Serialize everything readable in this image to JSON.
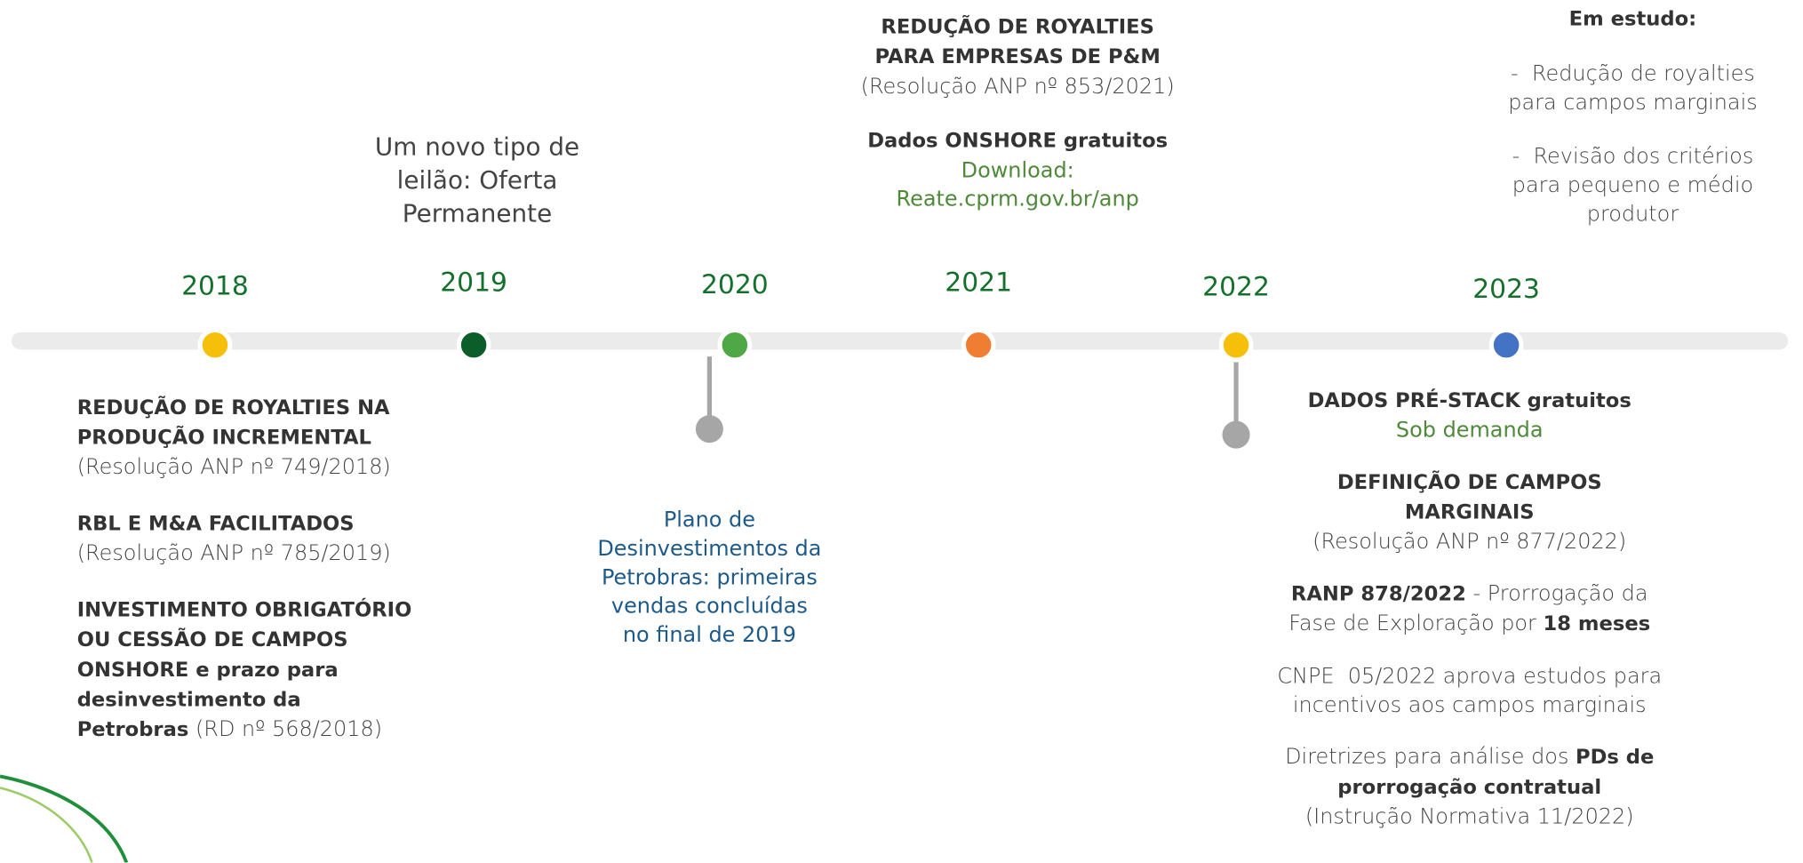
{
  "years": [
    {
      "label": "2018",
      "color": "#f5bf0a"
    },
    {
      "label": "2019",
      "color": "#0b5e2a"
    },
    {
      "label": "2020",
      "color": "#4ea845"
    },
    {
      "label": "2021",
      "color": "#ef7d32"
    },
    {
      "label": "2022",
      "color": "#f5bf0a"
    },
    {
      "label": "2023",
      "color": "#4472c4"
    }
  ],
  "blocks": [
    {
      "paragraphs": [
        [
          [
            {
              "text": "REDUÇÃO DE ROYALTIES NA",
              "style": "bold"
            }
          ],
          [
            {
              "text": "PRODUÇÃO INCREMENTAL",
              "style": "bold"
            }
          ],
          [
            {
              "text": "(Resolução ANP nº 749/2018)",
              "style": "regular"
            }
          ]
        ],
        [
          [
            {
              "text": "RBL E M&A FACILITADOS",
              "style": "bold"
            }
          ],
          [
            {
              "text": "(Resolução ANP nº 785/2019)",
              "style": "regular"
            }
          ]
        ],
        [
          [
            {
              "text": "INVESTIMENTO OBRIGATÓRIO",
              "style": "bold"
            }
          ],
          [
            {
              "text": "OU CESSÃO DE CAMPOS",
              "style": "bold"
            }
          ],
          [
            {
              "text": "ONSHORE e prazo para",
              "style": "bold"
            }
          ],
          [
            {
              "text": "desinvestimento da",
              "style": "bold"
            }
          ],
          [
            {
              "text": "Petrobras",
              "style": "bold"
            },
            {
              "text": " (RD nº 568/2018)",
              "style": "regular"
            }
          ]
        ]
      ]
    },
    {
      "paragraphs": [
        [
          [
            {
              "text": "Um novo tipo de",
              "style": "large"
            }
          ],
          [
            {
              "text": "leilão: Oferta",
              "style": "large"
            }
          ],
          [
            {
              "text": "Permanente",
              "style": "large"
            }
          ]
        ]
      ]
    },
    {
      "paragraphs": [
        [
          [
            {
              "text": "Plano de",
              "style": "blue"
            }
          ],
          [
            {
              "text": "Desinvestimentos da",
              "style": "blue"
            }
          ],
          [
            {
              "text": "Petrobras: primeiras",
              "style": "blue"
            }
          ],
          [
            {
              "text": "vendas concluídas",
              "style": "blue"
            }
          ],
          [
            {
              "text": "no final de 2019",
              "style": "blue"
            }
          ]
        ]
      ]
    },
    {
      "paragraphs": [
        [
          [
            {
              "text": "REDUÇÃO DE ROYALTIES",
              "style": "bold"
            }
          ],
          [
            {
              "text": "PARA EMPRESAS DE P&M",
              "style": "bold"
            }
          ],
          [
            {
              "text": "(Resolução ANP nº 853/2021)",
              "style": "regular"
            }
          ]
        ],
        [
          [
            {
              "text": "Dados ONSHORE gratuitos",
              "style": "bold"
            }
          ],
          [
            {
              "text": "Download:",
              "style": "green"
            }
          ],
          [
            {
              "text": "Reate.cprm.gov.br/anp",
              "style": "green"
            }
          ]
        ]
      ]
    },
    {
      "paragraphs": [
        [
          [
            {
              "text": "Em estudo:",
              "style": "bold"
            }
          ]
        ],
        [
          [
            {
              "text": "-  Redução de royalties",
              "style": "regular"
            }
          ],
          [
            {
              "text": "para campos marginais",
              "style": "regular"
            }
          ]
        ],
        [
          [
            {
              "text": "-  Revisão dos critérios",
              "style": "regular"
            }
          ],
          [
            {
              "text": "para pequeno e médio",
              "style": "regular"
            }
          ],
          [
            {
              "text": "produtor",
              "style": "regular"
            }
          ]
        ]
      ]
    },
    {
      "paragraphs": [
        [
          [
            {
              "text": "DADOS PRÉ-STACK gratuitos",
              "style": "bold"
            }
          ],
          [
            {
              "text": "Sob demanda",
              "style": "green"
            }
          ]
        ],
        [
          [
            {
              "text": "DEFINIÇÃO DE CAMPOS",
              "style": "bold"
            }
          ],
          [
            {
              "text": "MARGINAIS",
              "style": "bold"
            }
          ],
          [
            {
              "text": "(Resolução ANP nº 877/2022)",
              "style": "regular"
            }
          ]
        ],
        [
          [
            {
              "text": "RANP 878/2022",
              "style": "bold"
            },
            {
              "text": " - Prorrogação da",
              "style": "regular"
            }
          ],
          [
            {
              "text": "Fase de Exploração por ",
              "style": "regular"
            },
            {
              "text": "18 meses",
              "style": "bold"
            }
          ]
        ],
        [
          [
            {
              "text": "CNPE  05/2022 aprova estudos para",
              "style": "regular"
            }
          ],
          [
            {
              "text": "incentivos aos campos marginais",
              "style": "regular"
            }
          ]
        ],
        [
          [
            {
              "text": "Diretrizes para análise dos ",
              "style": "regular"
            },
            {
              "text": "PDs de",
              "style": "bold"
            }
          ],
          [
            {
              "text": "prorrogação contratual",
              "style": "bold"
            }
          ],
          [
            {
              "text": "(Instrução Normativa 11/2022)",
              "style": "regular"
            }
          ]
        ]
      ]
    }
  ]
}
